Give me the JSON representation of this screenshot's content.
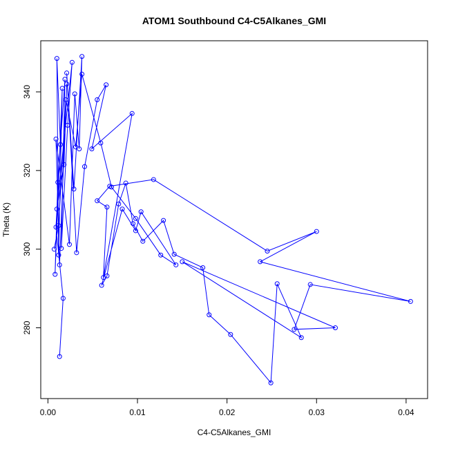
{
  "chart_data": {
    "type": "line",
    "title": "ATOM1 Southbound C4-C5Alkanes_GMI",
    "xlabel": "C4-C5Alkanes_GMI",
    "ylabel": "Theta (K)",
    "xlim": [
      -0.0008,
      0.0424
    ],
    "ylim": [
      262,
      353
    ],
    "grid": false,
    "legend": "none",
    "line_color": "#0000ff",
    "marker": "open-circle",
    "x_ticks": [
      {
        "value": 0.0,
        "label": "0.00"
      },
      {
        "value": 0.01,
        "label": "0.01"
      },
      {
        "value": 0.02,
        "label": "0.02"
      },
      {
        "value": 0.03,
        "label": "0.03"
      },
      {
        "value": 0.04,
        "label": "0.04"
      }
    ],
    "y_ticks": [
      {
        "value": 280,
        "label": "280"
      },
      {
        "value": 300,
        "label": "300"
      },
      {
        "value": 320,
        "label": "320"
      },
      {
        "value": 340,
        "label": "340"
      }
    ],
    "series": [
      {
        "points": [
          [
            0.0013,
            272.7
          ],
          [
            0.0017,
            287.5
          ],
          [
            0.0009,
            305.6
          ],
          [
            0.0014,
            326.6
          ],
          [
            0.001,
            348.5
          ],
          [
            0.0012,
            298.5
          ],
          [
            0.0016,
            340.9
          ],
          [
            0.0008,
            293.6
          ],
          [
            0.0011,
            317.0
          ],
          [
            0.0019,
            343.2
          ],
          [
            0.0015,
            300.2
          ],
          [
            0.0022,
            331.5
          ],
          [
            0.0027,
            347.5
          ],
          [
            0.001,
            310.2
          ],
          [
            0.0018,
            321.5
          ],
          [
            0.0021,
            342.0
          ],
          [
            0.0013,
            296.0
          ],
          [
            0.0009,
            328.0
          ],
          [
            0.0024,
            301.2
          ],
          [
            0.003,
            339.5
          ],
          [
            0.0035,
            325.5
          ],
          [
            0.0038,
            349.0
          ],
          [
            0.0029,
            315.3
          ],
          [
            0.0021,
            344.8
          ],
          [
            0.0032,
            299.1
          ],
          [
            0.0041,
            321.0
          ],
          [
            0.0055,
            338.0
          ],
          [
            0.0065,
            341.8
          ],
          [
            0.0049,
            325.5
          ],
          [
            0.0094,
            334.5
          ],
          [
            0.0062,
            292.8
          ],
          [
            0.0066,
            310.7
          ],
          [
            0.0055,
            312.3
          ],
          [
            0.0069,
            316.0
          ],
          [
            0.0118,
            317.7
          ],
          [
            0.0245,
            299.5
          ],
          [
            0.03,
            304.5
          ],
          [
            0.0237,
            296.8
          ],
          [
            0.0405,
            286.7
          ],
          [
            0.0293,
            291.0
          ],
          [
            0.0275,
            279.6
          ],
          [
            0.0321,
            280.0
          ],
          [
            0.015,
            296.8
          ],
          [
            0.0283,
            277.5
          ],
          [
            0.0256,
            291.2
          ],
          [
            0.0249,
            266.0
          ],
          [
            0.0204,
            278.3
          ],
          [
            0.018,
            283.3
          ],
          [
            0.0173,
            295.3
          ],
          [
            0.0141,
            298.7
          ],
          [
            0.0129,
            307.3
          ],
          [
            0.0106,
            302.0
          ],
          [
            0.0095,
            306.5
          ],
          [
            0.0087,
            316.8
          ],
          [
            0.0079,
            311.5
          ],
          [
            0.0066,
            293.2
          ],
          [
            0.006,
            290.8
          ],
          [
            0.0083,
            310.2
          ],
          [
            0.0098,
            304.7
          ],
          [
            0.0104,
            309.5
          ],
          [
            0.0143,
            296.0
          ],
          [
            0.0126,
            298.5
          ],
          [
            0.0098,
            307.8
          ],
          [
            0.0071,
            315.8
          ],
          [
            0.0059,
            327.0
          ],
          [
            0.0038,
            344.5
          ],
          [
            0.0031,
            326.0
          ],
          [
            0.002,
            338.0
          ],
          [
            0.0012,
            306.0
          ],
          [
            0.0007,
            300.0
          ]
        ]
      }
    ]
  }
}
